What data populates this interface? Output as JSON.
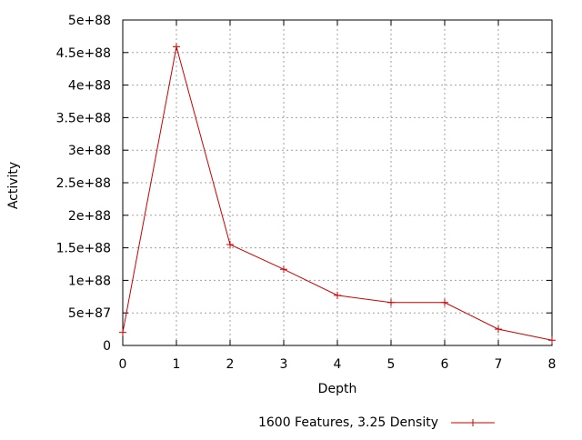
{
  "chart_data": {
    "type": "line",
    "title": "",
    "xlabel": "Depth",
    "ylabel": "Activity",
    "xlim": [
      0,
      8
    ],
    "ylim": [
      0,
      5e+88
    ],
    "grid": true,
    "legend_position": "bottom-center",
    "x_ticks": [
      0,
      1,
      2,
      3,
      4,
      5,
      6,
      7,
      8
    ],
    "x_tick_labels": [
      "0",
      "1",
      "2",
      "3",
      "4",
      "5",
      "6",
      "7",
      "8"
    ],
    "y_ticks": [
      0,
      5e+87,
      1e+88,
      1.5e+88,
      2e+88,
      2.5e+88,
      3e+88,
      3.5e+88,
      4e+88,
      4.5e+88,
      5e+88
    ],
    "y_tick_labels": [
      "0",
      "5e+87",
      "1e+88",
      "1.5e+88",
      "2e+88",
      "2.5e+88",
      "3e+88",
      "3.5e+88",
      "4e+88",
      "4.5e+88",
      "5e+88"
    ],
    "series": [
      {
        "name": "1600 Features, 3.25 Density",
        "color": "#cc0000",
        "marker": "plus",
        "x": [
          0,
          1,
          2,
          3,
          4,
          5,
          6,
          7,
          8
        ],
        "y": [
          2e+87,
          4.59e+88,
          1.55e+88,
          1.17e+88,
          7.7e+87,
          6.6e+87,
          6.6e+87,
          2.5e+87,
          8e+86
        ]
      }
    ]
  }
}
